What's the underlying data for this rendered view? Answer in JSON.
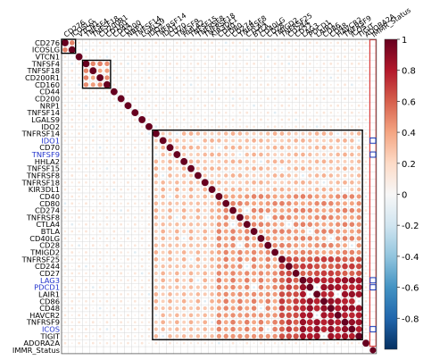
{
  "chart_data": {
    "type": "heatmap",
    "subtype": "correlation-matrix (upper triangle, circle size and color = correlation)",
    "title": "",
    "variables": [
      "CD276",
      "ICOSLG",
      "VTCN1",
      "TNFSF4",
      "TNFSF18",
      "CD200R1",
      "CD160",
      "CD44",
      "CD200",
      "NRP1",
      "TNFSF14",
      "LGALS9",
      "IDO2",
      "TNFRSF14",
      "IDO1",
      "CD70",
      "TNFSF9",
      "HHLA2",
      "TNFSF15",
      "TNFRSF8",
      "TNFRSF18",
      "KIR3DL1",
      "CD40",
      "CD80",
      "CD274",
      "TNFRSF8",
      "CTLA4",
      "BTLA",
      "CD40LG",
      "CD28",
      "TMIGD2",
      "TNFRSF25",
      "CD244",
      "CD27",
      "LAG3",
      "PDCD1",
      "LAIR1",
      "CD86",
      "CD48",
      "HAVCR2",
      "TNFRSF9",
      "ICOS",
      "TIGIT",
      "ADORA2A",
      "IMMR_Status"
    ],
    "highlighted_blue": [
      "IDO1",
      "TNFSF9",
      "LAG3",
      "PDCD1",
      "ICOS"
    ],
    "highlighted_blue_indices": [
      14,
      16,
      34,
      35,
      41
    ],
    "top_labels": [
      "CD276",
      "ICOSLG",
      "VTCN1",
      "TNFSF4",
      "TNFSF18",
      "CD200R1",
      "CD160",
      "CD44",
      "CD200",
      "NRP1",
      "TNFSF14",
      "LGALS9",
      "IDO2",
      "TNFRSF14",
      "IDO1",
      "CD70",
      "TNFSF9",
      "HHLA2",
      "TNFSF15",
      "TNFRSF8",
      "TNFRSF18",
      "KIR3DL1",
      "CD40",
      "CD80",
      "CD274",
      "TNFRSF8",
      "CTLA4",
      "BTLA",
      "CD40LG",
      "CD28",
      "TMIGD2",
      "TNFRSF25",
      "CD244",
      "CD27",
      "LAG3",
      "PDCD1",
      "LAIR1",
      "CD86",
      "CD48",
      "HAVCR2",
      "TNFRSF9",
      "ICOS",
      "TIGIT",
      "ADORA2A",
      "IMMR_Status"
    ],
    "diagonal_value": 1,
    "clusters": [
      {
        "from": "CD276",
        "to": "ICOSLG",
        "start_index": 0,
        "end_index": 1
      },
      {
        "from": "TNFSF4",
        "to": "CD160",
        "start_index": 3,
        "end_index": 6
      },
      {
        "from": "TNFRSF14",
        "to": "TIGIT",
        "start_index": 13,
        "end_index": 42
      }
    ],
    "blocks": [
      {
        "rows": [
          0,
          1
        ],
        "cols": [
          0,
          1
        ],
        "value": 0.45
      },
      {
        "rows": [
          3,
          6
        ],
        "cols": [
          3,
          6
        ],
        "value": 0.45
      },
      {
        "rows": [
          13,
          42
        ],
        "cols": [
          13,
          42
        ],
        "value": 0.3
      },
      {
        "rows": [
          22,
          42
        ],
        "cols": [
          22,
          42
        ],
        "value": 0.45
      },
      {
        "rows": [
          31,
          42
        ],
        "cols": [
          31,
          42
        ],
        "value": 0.65
      },
      {
        "rows": [
          34,
          42
        ],
        "cols": [
          34,
          42
        ],
        "value": 0.82
      }
    ],
    "status_column": {
      "label": "IMMR_Status",
      "marked_rows": [
        14,
        16,
        34,
        35,
        41
      ],
      "marker_color": "#1f3fbf"
    },
    "colorbar": {
      "ticks": [
        1,
        0.8,
        0.6,
        0.4,
        0.2,
        0,
        -0.2,
        -0.4,
        -0.6,
        -0.8
      ],
      "tick_labels": [
        "1",
        "0.8",
        "0.6",
        "0.4",
        "0.2",
        "0",
        "-0.2",
        "-0.4",
        "-0.6",
        "-0.8"
      ],
      "range": [
        -1,
        1
      ],
      "colors": [
        "#053061",
        "#2166ac",
        "#4393c3",
        "#92c5de",
        "#d1e5f0",
        "#f7f7f7",
        "#fddbc7",
        "#f4a582",
        "#d6604d",
        "#b2182b",
        "#67001f"
      ]
    },
    "grid": true,
    "cluster_box_color": "#000000",
    "status_box_color": "#e04040",
    "blue_label_color": "#2233cc",
    "default_label_color": "#000000"
  }
}
